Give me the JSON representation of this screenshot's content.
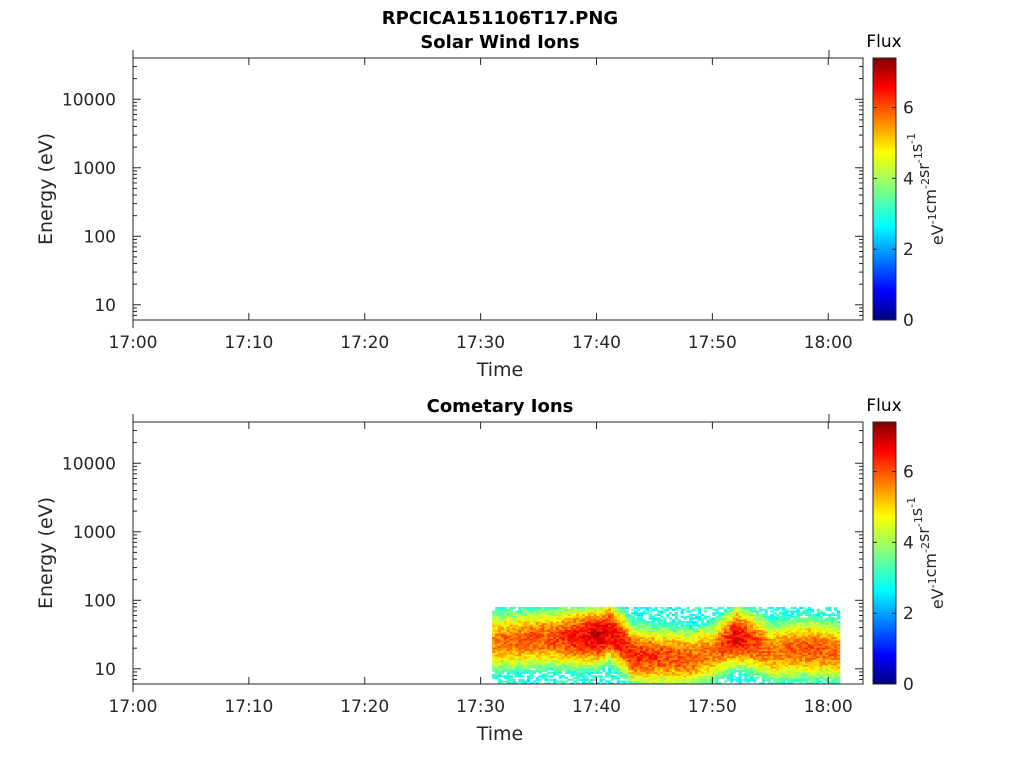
{
  "figure": {
    "title": "RPCICA151106T17.PNG"
  },
  "chart_data": [
    {
      "type": "heatmap",
      "title": "Solar Wind Ions",
      "xlabel": "Time",
      "ylabel": "Energy (eV)",
      "x_ticks": [
        "17:00",
        "17:10",
        "17:20",
        "17:30",
        "17:40",
        "17:50",
        "18:00"
      ],
      "xlim": [
        "17:00",
        "18:03"
      ],
      "y_scale": "log",
      "y_ticks": [
        "10",
        "100",
        "1000",
        "10000"
      ],
      "ylim": [
        6,
        40000
      ],
      "colorbar": {
        "title": "Flux",
        "label": "eV-1cm-2sr-1s-1",
        "label_parts": [
          "eV",
          "-1",
          "cm",
          "-2",
          "sr",
          "-1",
          "s",
          "-1"
        ],
        "ticks": [
          "0",
          "2",
          "4",
          "6"
        ],
        "range": [
          0,
          7.4
        ],
        "colormap": "jet"
      },
      "data": []
    },
    {
      "type": "heatmap",
      "title": "Cometary Ions",
      "xlabel": "Time",
      "ylabel": "Energy (eV)",
      "x_ticks": [
        "17:00",
        "17:10",
        "17:20",
        "17:30",
        "17:40",
        "17:50",
        "18:00"
      ],
      "xlim": [
        "17:00",
        "18:03"
      ],
      "y_scale": "log",
      "y_ticks": [
        "10",
        "100",
        "1000",
        "10000"
      ],
      "ylim": [
        6,
        40000
      ],
      "colorbar": {
        "title": "Flux",
        "label": "eV-1cm-2sr-1s-1",
        "label_parts": [
          "eV",
          "-1",
          "cm",
          "-2",
          "sr",
          "-1",
          "s",
          "-1"
        ],
        "ticks": [
          "0",
          "2",
          "4",
          "6"
        ],
        "range": [
          0,
          7.4
        ],
        "colormap": "jet"
      },
      "data_extent": {
        "time_start": "17:31",
        "time_end": "18:01",
        "energy_min": 6,
        "energy_max": 80
      },
      "peak_profile": {
        "times": [
          "17:31",
          "17:36",
          "17:40",
          "17:41",
          "17:43",
          "17:46",
          "17:48",
          "17:50",
          "17:52",
          "17:55",
          "17:58",
          "18:01"
        ],
        "peak_energy": [
          25,
          28,
          30,
          35,
          16,
          15,
          14,
          18,
          30,
          18,
          20,
          18
        ],
        "peak_flux": [
          5.6,
          5.9,
          6.8,
          6.6,
          6.2,
          5.9,
          5.8,
          5.6,
          6.6,
          5.6,
          5.9,
          5.7
        ]
      }
    }
  ]
}
